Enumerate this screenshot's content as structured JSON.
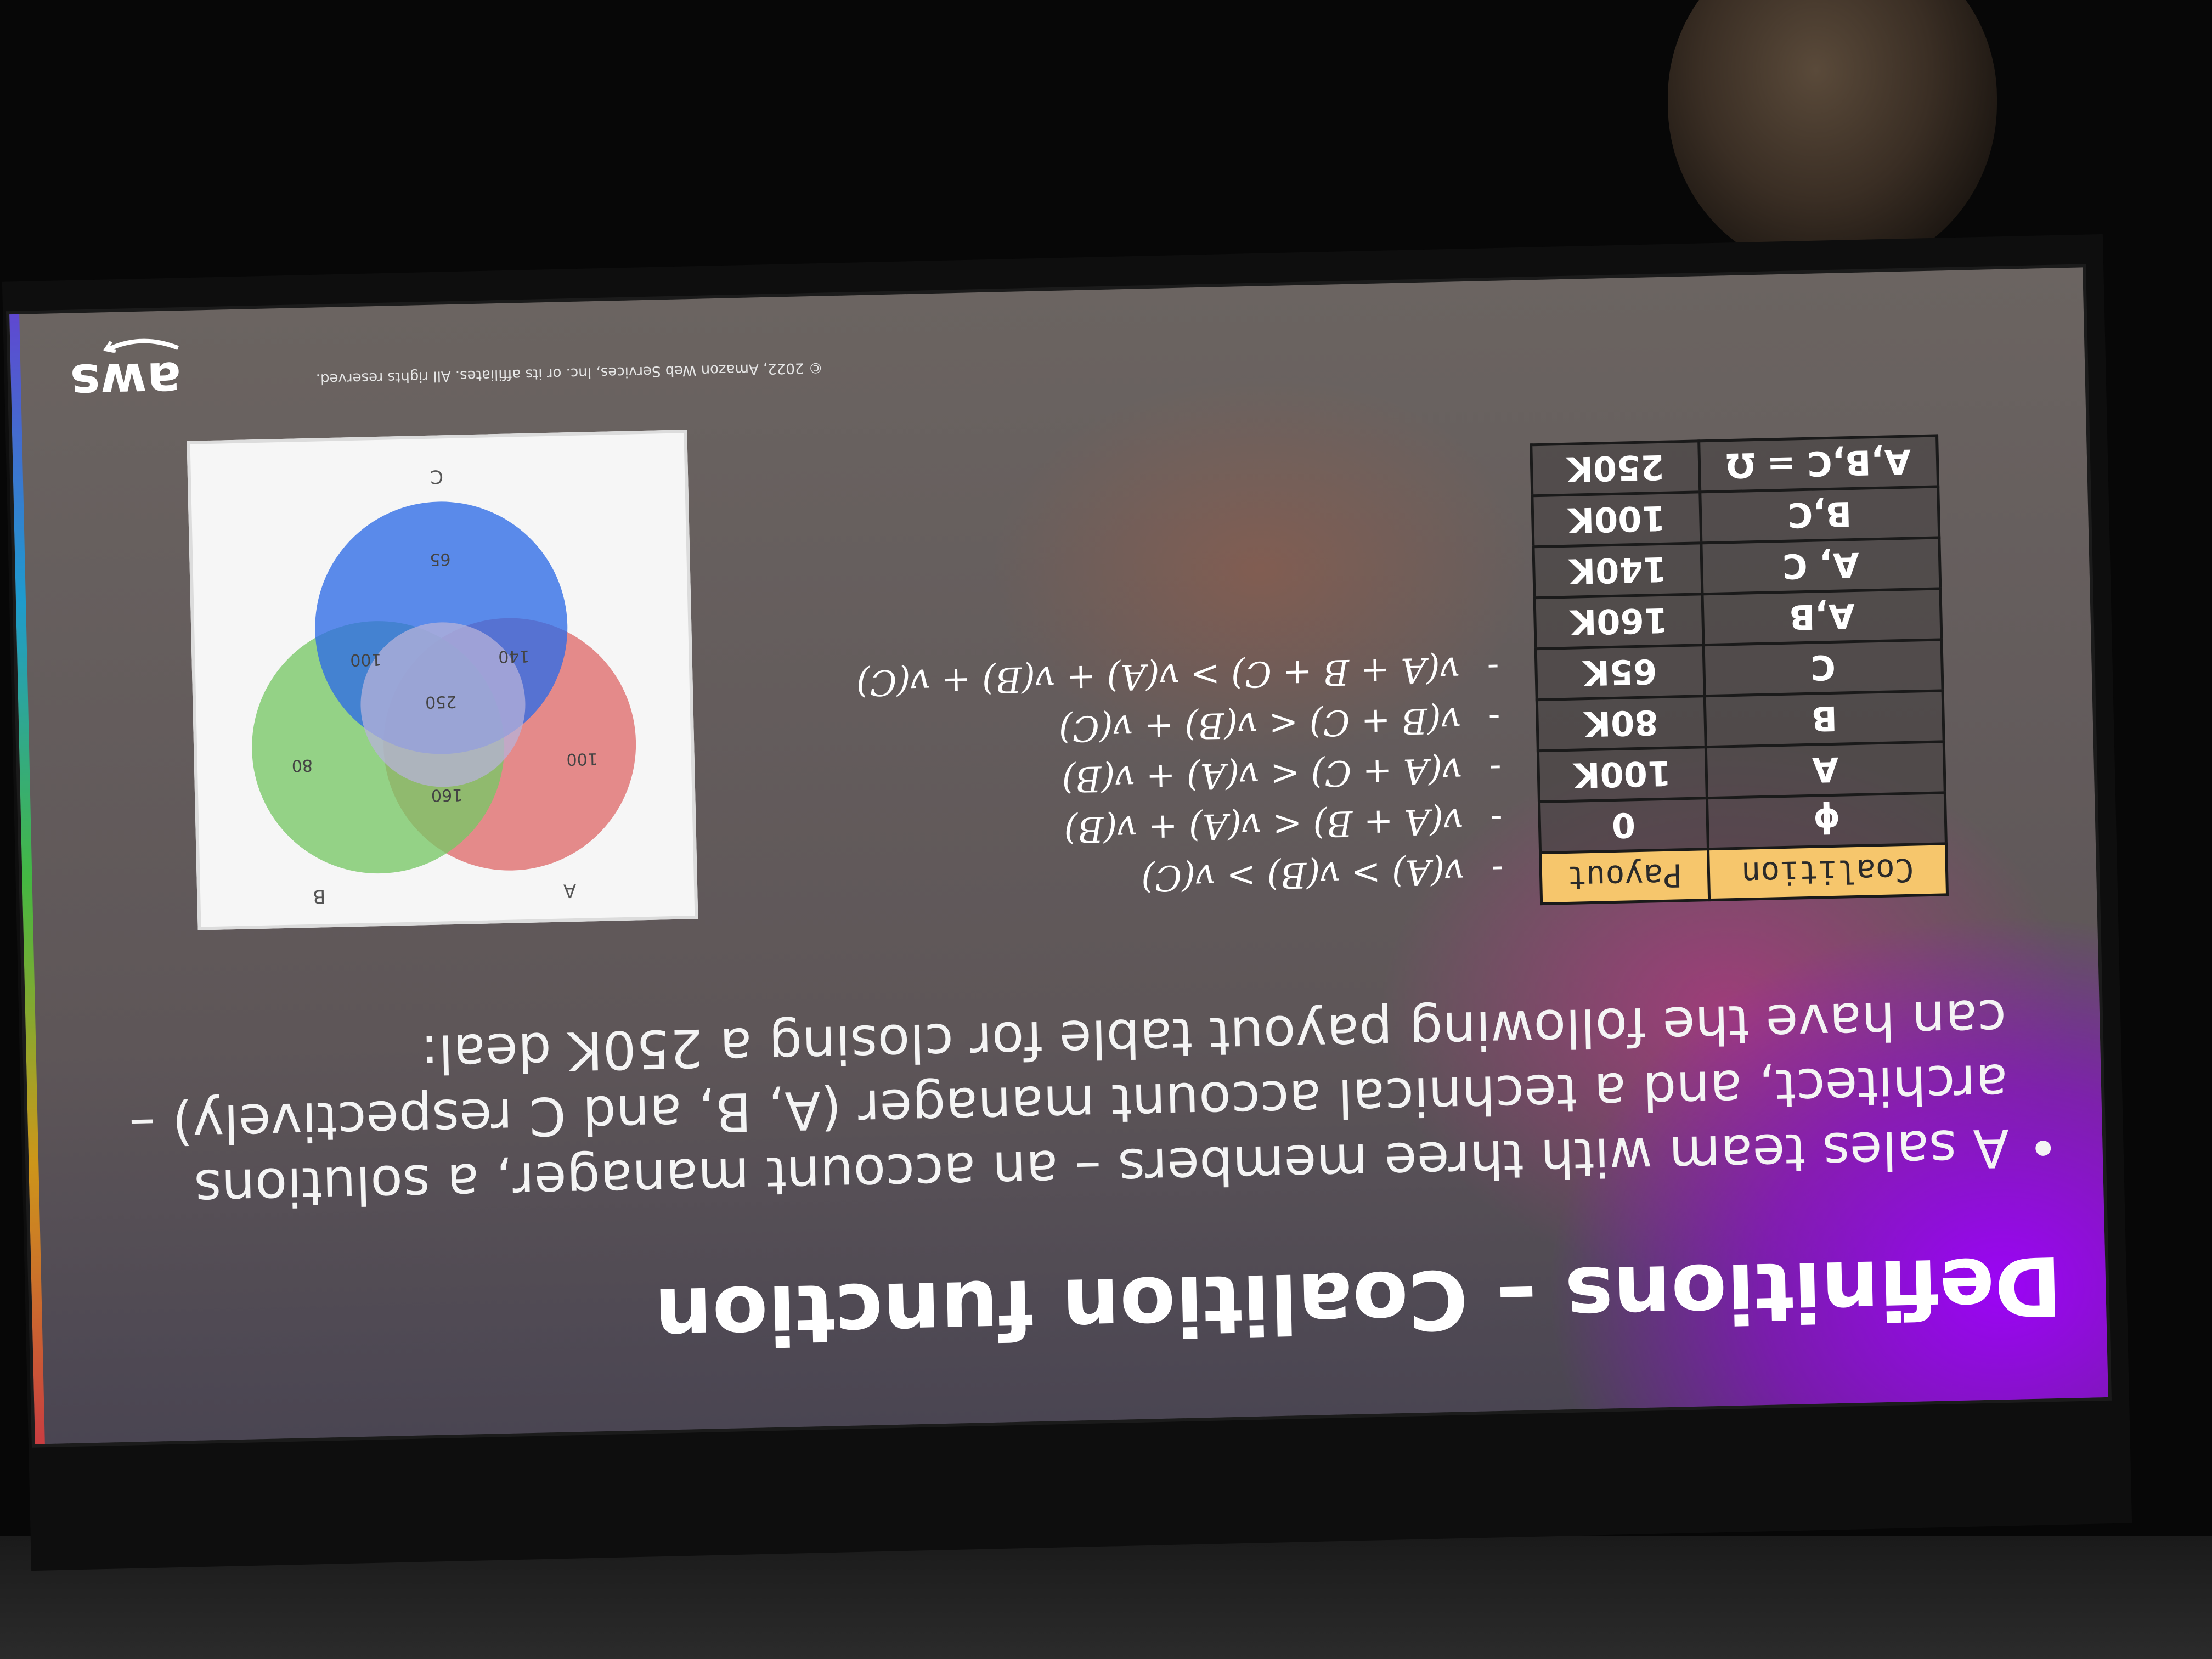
{
  "slide": {
    "title": "Definitions – Coalition function",
    "bullet": "A sales team with three members – an account manager, a solutions architect, and a technical account manager (A, B, and C respectively) – can have the following payout table for closing a 250K deal:"
  },
  "payout_table": {
    "headers": [
      "Coalition",
      "Payout"
    ],
    "rows": [
      [
        "ϕ",
        "0"
      ],
      [
        "A",
        "100K"
      ],
      [
        "B",
        "80K"
      ],
      [
        "C",
        "65K"
      ],
      [
        "A,B",
        "160K"
      ],
      [
        "A, C",
        "140K"
      ],
      [
        "B,C",
        "100K"
      ],
      [
        "A,B,C = Ω",
        "250K"
      ]
    ]
  },
  "formulas": [
    "v(A) > v(B) > v(C)",
    "v(A + B) < v(A) + v(B)",
    "v(A + C) < v(A) + v(B)",
    "v(B + C) < v(B) + v(C)",
    "v(A + B + C) > v(A) + v(B) + v(C)"
  ],
  "venn": {
    "labels": {
      "a": "A",
      "b": "B",
      "c": "C"
    },
    "values": {
      "a": "100",
      "b": "80",
      "c": "65",
      "ab": "160",
      "ac": "140",
      "bc": "100",
      "abc": "250"
    },
    "colors": {
      "a": "#e8706f",
      "b": "#7ccf6a",
      "c": "#2f6ff0"
    }
  },
  "footer": {
    "logo": "aws",
    "copyright": "© 2022, Amazon Web Services, Inc. or its affiliates. All rights reserved."
  }
}
